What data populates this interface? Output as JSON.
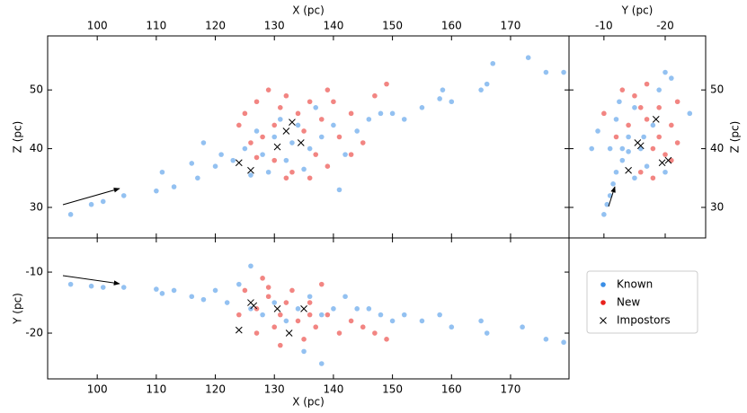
{
  "chart_data": [
    {
      "type": "scatter",
      "xlabel": "X (pc)",
      "ylabel": "Z (pc)",
      "xlim": [
        91.6,
        179.9
      ],
      "ylim": [
        24.8,
        59.2
      ],
      "xticks": [
        100,
        110,
        120,
        130,
        140,
        150,
        160,
        170
      ],
      "yticks": [
        30,
        40,
        50
      ],
      "series": [
        {
          "name": "Known",
          "color": "#3a8ee6",
          "marker": "o",
          "x": [
            95.5,
            99,
            101,
            104.5,
            110,
            111,
            113,
            116,
            117,
            118,
            120,
            121,
            123,
            125,
            127,
            128,
            130,
            131,
            132,
            133,
            134,
            136,
            138,
            140,
            141,
            142,
            144,
            146,
            148,
            150,
            152,
            155,
            158,
            158.5,
            160,
            165,
            166,
            167,
            173,
            176,
            179,
            126,
            129,
            135,
            137
          ],
          "values": [
            28.8,
            30.5,
            31,
            32,
            32.8,
            36,
            33.5,
            37.5,
            35,
            41,
            37,
            39,
            38,
            40,
            43,
            39,
            42,
            45,
            38,
            41,
            44,
            40,
            42,
            44,
            33,
            39,
            43,
            45,
            46,
            46,
            45,
            47,
            48.5,
            50,
            48,
            50,
            51,
            54.5,
            55.5,
            53,
            53,
            35.5,
            36,
            36.5,
            47
          ]
        },
        {
          "name": "New",
          "color": "#e8211c",
          "marker": "o",
          "x": [
            124,
            125,
            127,
            128,
            129,
            130,
            131,
            132,
            133,
            134,
            135,
            136,
            137,
            138,
            139,
            140,
            141,
            143,
            145,
            147,
            149,
            127,
            132,
            136,
            130,
            139,
            143,
            126
          ],
          "values": [
            44,
            46,
            48,
            42,
            50,
            38,
            47,
            49,
            36,
            46,
            43,
            48,
            39,
            45,
            37,
            48,
            42,
            39,
            41,
            49,
            51,
            38.5,
            35,
            35,
            44,
            50,
            46,
            41
          ]
        },
        {
          "name": "Impostors",
          "color": "#000000",
          "marker": "x",
          "x": [
            124,
            126,
            130.5,
            132,
            134.5,
            133
          ],
          "values": [
            37.6,
            36.3,
            40.3,
            43,
            41,
            44.5
          ]
        }
      ]
    },
    {
      "type": "scatter",
      "xlabel": "Y (pc)",
      "ylabel": "Z (pc)",
      "xlim": [
        -4.3,
        -26.6
      ],
      "ylim": [
        24.8,
        59.2
      ],
      "xticks": [
        -10,
        -20
      ],
      "yticks": [
        30,
        40,
        50
      ],
      "series": [
        {
          "color": "#3a8ee6",
          "marker": "o",
          "x": [
            -10,
            -10.5,
            -11,
            -11.5,
            -12,
            -8,
            -9,
            -12,
            -13,
            -14,
            -15,
            -16,
            -17,
            -18,
            -19,
            -20,
            -21,
            -24,
            -13,
            -15,
            -14,
            -16.5,
            -11,
            -12.5,
            -20
          ],
          "values": [
            28.8,
            30.5,
            32,
            34,
            36,
            40,
            43,
            45,
            38,
            42,
            47,
            40,
            37,
            44,
            50,
            53,
            52,
            46,
            40,
            35,
            39.5,
            42,
            40,
            48,
            36
          ]
        },
        {
          "color": "#e8211c",
          "marker": "o",
          "x": [
            -13,
            -15,
            -17,
            -19,
            -21,
            -22,
            -20,
            -18,
            -16,
            -14,
            -12,
            -10,
            -18,
            -21,
            -19,
            -16,
            -17,
            -22
          ],
          "values": [
            50,
            49,
            51,
            47,
            44,
            48,
            39,
            35,
            36,
            44,
            42,
            46,
            40,
            38,
            42,
            47,
            45,
            41
          ]
        },
        {
          "color": "#000000",
          "marker": "x",
          "x": [
            -14,
            -16,
            -15.5,
            -19.5,
            -20.5,
            -18.5
          ],
          "values": [
            36.3,
            40.5,
            41,
            37.6,
            38,
            45
          ]
        }
      ]
    },
    {
      "type": "scatter",
      "xlabel": "X (pc)",
      "ylabel": "Y (pc)",
      "xlim": [
        91.6,
        179.9
      ],
      "ylim": [
        -27.5,
        -4.4
      ],
      "xticks": [
        100,
        110,
        120,
        130,
        140,
        150,
        160,
        170
      ],
      "yticks": [
        -10,
        -20
      ],
      "series": [
        {
          "color": "#3a8ee6",
          "marker": "o",
          "x": [
            95.5,
            99,
            101,
            104.5,
            110,
            111,
            113,
            116,
            118,
            120,
            122,
            124,
            126,
            128,
            130,
            132,
            134,
            136,
            138,
            140,
            142,
            144,
            146,
            148,
            150,
            152,
            155,
            158,
            160,
            165,
            166,
            172,
            176,
            179,
            126,
            135,
            138
          ],
          "values": [
            -12,
            -12.3,
            -12.5,
            -12.5,
            -12.8,
            -13.5,
            -13,
            -14,
            -14.5,
            -13,
            -15,
            -12,
            -16,
            -17,
            -15,
            -18,
            -16,
            -14,
            -17,
            -16,
            -14,
            -16,
            -16,
            -17,
            -18,
            -17,
            -18,
            -17,
            -19,
            -18,
            -20,
            -19,
            -21,
            -21.5,
            -9,
            -23,
            -25
          ]
        },
        {
          "color": "#e8211c",
          "marker": "o",
          "x": [
            124,
            125,
            127,
            128,
            129,
            130,
            131,
            132,
            133,
            134,
            135,
            136,
            137,
            138,
            139,
            141,
            143,
            145,
            147,
            149,
            127,
            131,
            136,
            129
          ],
          "values": [
            -17,
            -13,
            -20,
            -11,
            -14,
            -19,
            -22,
            -15,
            -13,
            -18,
            -21,
            -15,
            -19,
            -12,
            -17,
            -20,
            -18,
            -19,
            -20,
            -21,
            -16,
            -17,
            -17,
            -12.5
          ]
        },
        {
          "color": "#000000",
          "marker": "x",
          "x": [
            124,
            126,
            130.5,
            132.5,
            135,
            126.5
          ],
          "values": [
            -19.5,
            -15,
            -16,
            -20,
            -16,
            -15.5
          ]
        }
      ]
    }
  ]
}
